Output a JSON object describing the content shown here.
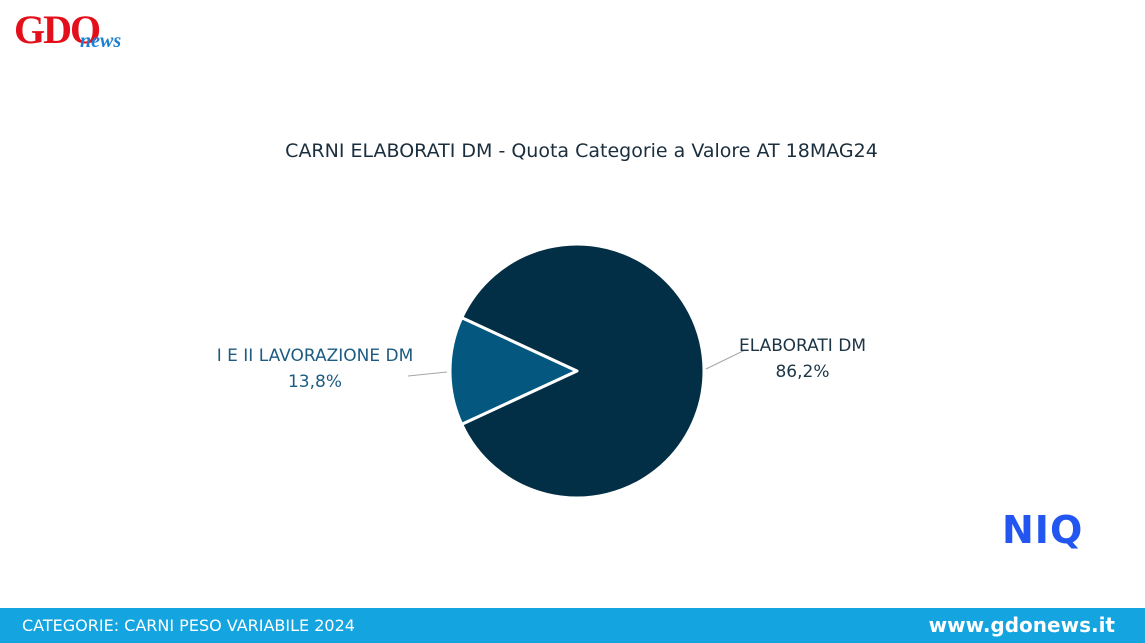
{
  "logo": {
    "main": "GDO",
    "sub": "news"
  },
  "chart_data": {
    "type": "pie",
    "title": "CARNI ELABORATI DM - Quota Categorie a Valore AT 18MAG24",
    "categories": [
      "I E II LAVORAZIONE DM",
      "ELABORATI DM"
    ],
    "values": [
      13.8,
      86.2
    ],
    "value_labels": [
      "13,8%",
      "86,2%"
    ],
    "colors": [
      "#04587f",
      "#032f46"
    ]
  },
  "brand": "NIQ",
  "footer": {
    "left": "CATEGORIE: CARNI PESO VARIABILE 2024",
    "right": "www.gdonews.it"
  }
}
